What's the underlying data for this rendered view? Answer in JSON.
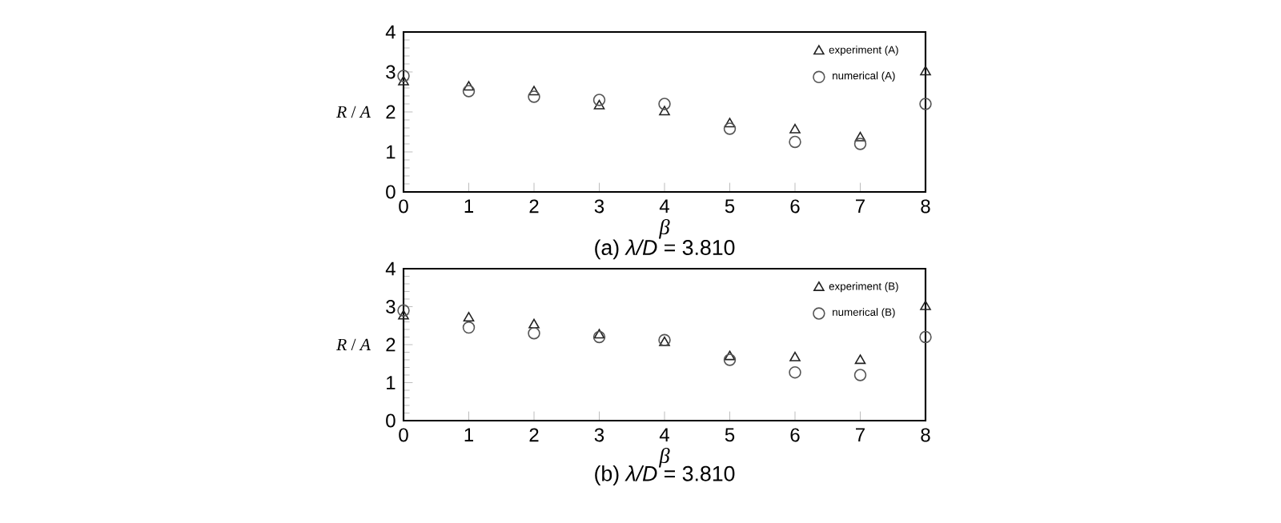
{
  "chart_data": [
    {
      "type": "scatter",
      "title": "(a) *λ/D* = 3.810",
      "xlabel": "β",
      "ylabel": "*R* / *A*",
      "x": [
        0,
        1,
        2,
        3,
        4,
        5,
        6,
        7,
        8
      ],
      "xlim": [
        0,
        8
      ],
      "ylim": [
        0,
        4
      ],
      "xticks": [
        0,
        1,
        2,
        3,
        4,
        5,
        6,
        7,
        8
      ],
      "yticks": [
        0,
        1,
        2,
        3,
        4
      ],
      "legend": "top right",
      "series": [
        {
          "name": "experiment (A)",
          "color": "#222222",
          "marker": "triangle",
          "values": [
            2.75,
            2.62,
            2.5,
            2.15,
            2.0,
            1.7,
            1.55,
            1.35,
            3.0
          ]
        },
        {
          "name": "numerical (A)",
          "color": "#555555",
          "marker": "circle",
          "values": [
            2.9,
            2.52,
            2.38,
            2.3,
            2.2,
            1.58,
            1.25,
            1.2,
            2.2
          ]
        }
      ]
    },
    {
      "type": "scatter",
      "title": "(b) *λ/D* = 3.810",
      "xlabel": "β",
      "ylabel": "*R* / *A*",
      "x": [
        0,
        1,
        2,
        3,
        4,
        5,
        6,
        7,
        8
      ],
      "xlim": [
        0,
        8
      ],
      "ylim": [
        0,
        4
      ],
      "xticks": [
        0,
        1,
        2,
        3,
        4,
        5,
        6,
        7,
        8
      ],
      "yticks": [
        0,
        1,
        2,
        3,
        4
      ],
      "legend": "top right",
      "series": [
        {
          "name": "experiment (B)",
          "color": "#222222",
          "marker": "triangle",
          "values": [
            2.75,
            2.7,
            2.52,
            2.25,
            2.05,
            1.68,
            1.65,
            1.58,
            3.0
          ]
        },
        {
          "name": "numerical (B)",
          "color": "#555555",
          "marker": "circle",
          "values": [
            2.9,
            2.45,
            2.3,
            2.2,
            2.12,
            1.6,
            1.27,
            1.2,
            2.2
          ]
        }
      ]
    }
  ]
}
